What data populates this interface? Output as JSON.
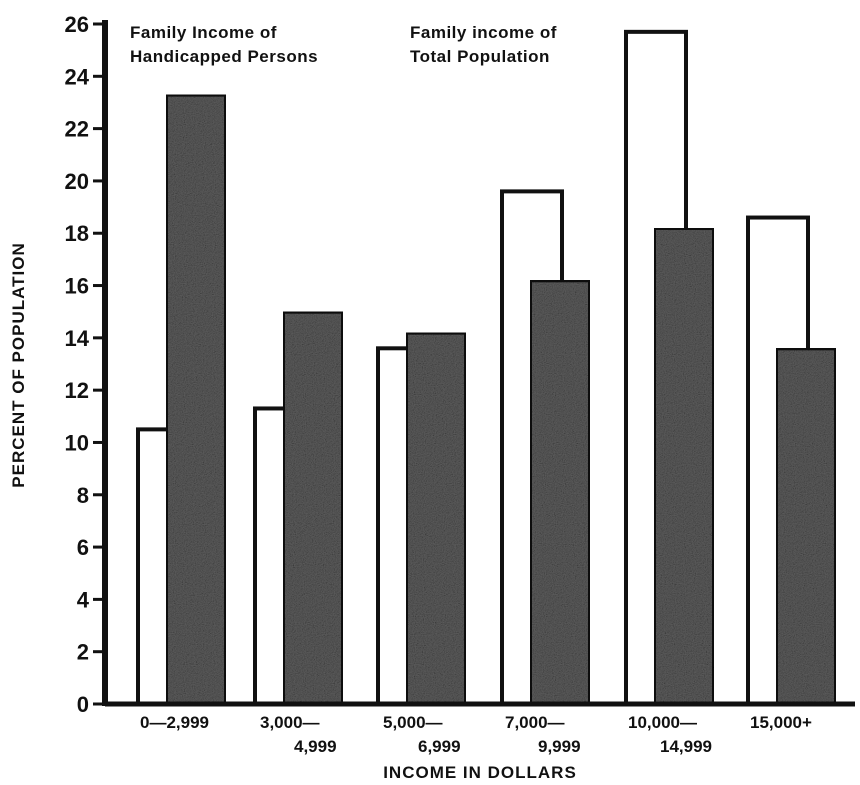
{
  "chart_data": {
    "type": "bar",
    "categories": [
      [
        "0—2,999"
      ],
      [
        "3,000—",
        "4,999"
      ],
      [
        "5,000—",
        "6,999"
      ],
      [
        "7,000—",
        "9,999"
      ],
      [
        "10,000—",
        "14,999"
      ],
      [
        "15,000+"
      ]
    ],
    "series": [
      {
        "name": "Family income of Total Population",
        "legend_lines": [
          "Family income of",
          "Total Population"
        ],
        "style": "outline",
        "values": [
          10.5,
          11.3,
          13.6,
          19.6,
          25.7,
          18.6
        ]
      },
      {
        "name": "Family Income of Handicapped Persons",
        "legend_lines": [
          "Family Income of",
          "Handicapped Persons"
        ],
        "style": "shaded",
        "values": [
          23.3,
          15.0,
          14.2,
          16.2,
          18.2,
          13.6
        ]
      }
    ],
    "xlabel": "INCOME IN DOLLARS",
    "ylabel": "PERCENT OF POPULATION",
    "ylim": [
      0,
      26
    ],
    "yticks": [
      0,
      2,
      4,
      6,
      8,
      10,
      12,
      14,
      16,
      18,
      20,
      22,
      24,
      26
    ],
    "colors": {
      "outline_fill": "#ffffff",
      "shaded_fill": "#5e5e5e",
      "stroke": "#111111"
    },
    "legend_placement": "top, inside plot"
  }
}
